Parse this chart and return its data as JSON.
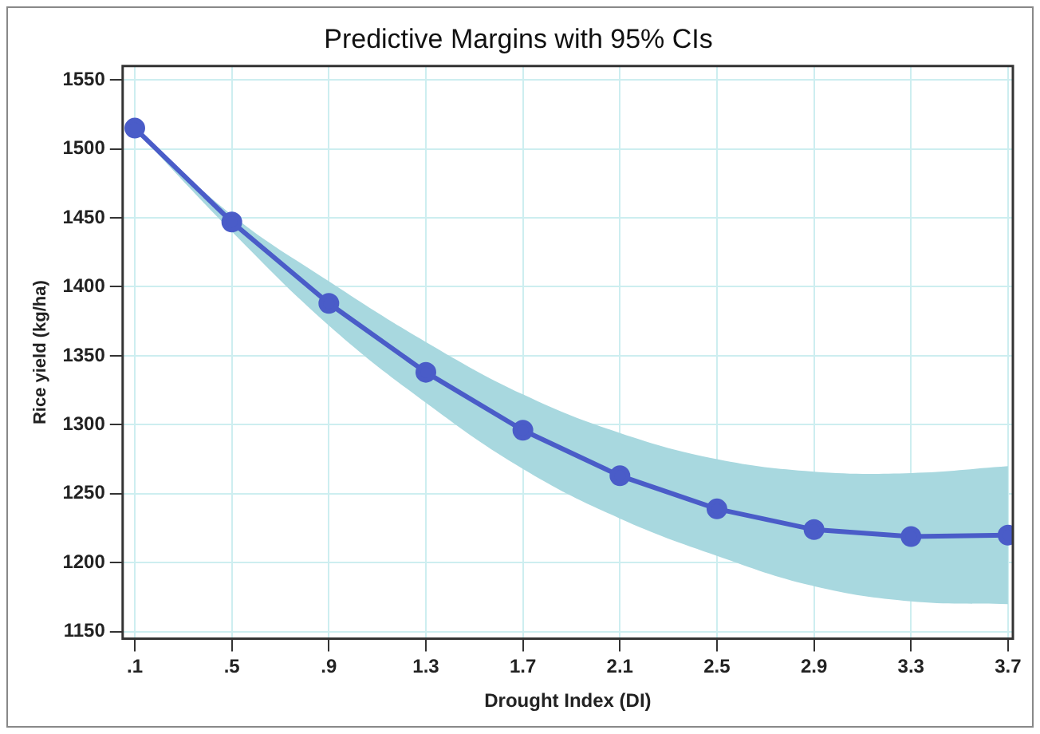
{
  "chart_data": {
    "type": "line",
    "title": "Predictive Margins with 95% CIs",
    "xlabel": "Drought Index (DI)",
    "ylabel": "Rice yield (kg/ha)",
    "x": [
      0.1,
      0.5,
      0.9,
      1.3,
      1.7,
      2.1,
      2.5,
      2.9,
      3.3,
      3.7
    ],
    "series": [
      {
        "color": "#4a5cc8",
        "values": [
          1515,
          1447,
          1388,
          1338,
          1296,
          1263,
          1239,
          1224,
          1219,
          1220
        ],
        "lower": [
          1514,
          1440,
          1372,
          1316,
          1268,
          1232,
          1205,
          1183,
          1172,
          1170
        ],
        "upper": [
          1516,
          1452,
          1404,
          1360,
          1322,
          1294,
          1275,
          1266,
          1265,
          1270
        ]
      }
    ],
    "xlim": [
      0.05,
      3.72
    ],
    "xticks": [
      {
        "value": 0.1,
        "label": ".1"
      },
      {
        "value": 0.5,
        "label": ".5"
      },
      {
        "value": 0.9,
        "label": ".9"
      },
      1.3,
      1.7,
      2.1,
      2.5,
      2.9,
      3.3,
      3.7
    ],
    "ylim": [
      1145,
      1560
    ],
    "yticks": [
      1150,
      1200,
      1250,
      1300,
      1350,
      1400,
      1450,
      1500,
      1550
    ],
    "grid": true,
    "legend": false,
    "marker": "circle",
    "line_style": "solid"
  }
}
